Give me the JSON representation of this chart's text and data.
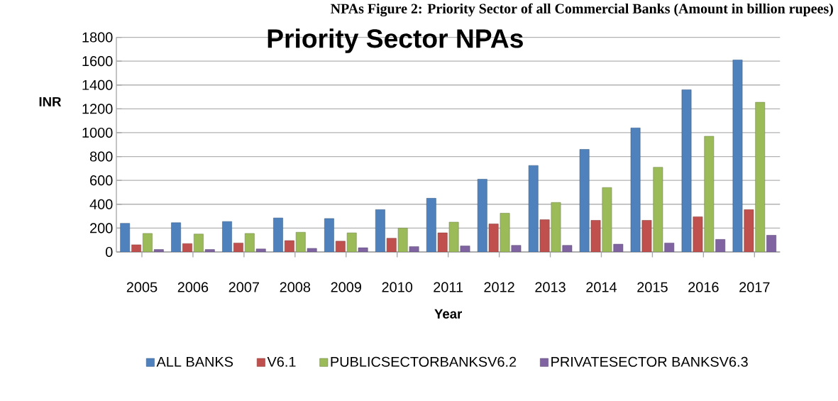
{
  "chart_data": {
    "type": "bar",
    "title": "Priority Sector NPAs",
    "xlabel": "Year",
    "ylabel": "INR",
    "annotations": [
      "NPAs Figure 2: Priority Sector of all Commercial Banks (Amount in billion rupees)"
    ],
    "categories": [
      "2005",
      "2006",
      "2007",
      "2008",
      "2009",
      "2010",
      "2011",
      "2012",
      "2013",
      "2014",
      "2015",
      "2016",
      "2017"
    ],
    "series": [
      {
        "name": "ALL BANKS",
        "color": "#4f81bd",
        "values": [
          240,
          245,
          255,
          285,
          280,
          355,
          450,
          610,
          725,
          860,
          1040,
          1360,
          1610
        ]
      },
      {
        "name": "V6.1",
        "color": "#c0504d",
        "values": [
          60,
          70,
          75,
          95,
          90,
          115,
          160,
          235,
          270,
          265,
          265,
          295,
          355
        ]
      },
      {
        "name": "PUBLICSECTORBANKSV6.2",
        "color": "#9bbb59",
        "values": [
          155,
          150,
          155,
          165,
          160,
          200,
          250,
          325,
          415,
          540,
          710,
          970,
          1255
        ]
      },
      {
        "name": "PRIVATESECTOR BANKSV6.3",
        "color": "#8064a2",
        "values": [
          20,
          20,
          25,
          30,
          35,
          45,
          50,
          55,
          55,
          65,
          75,
          105,
          140
        ]
      }
    ],
    "ylim": [
      0,
      1800
    ],
    "yticks": [
      0,
      200,
      400,
      600,
      800,
      1000,
      1200,
      1400,
      1600,
      1800
    ],
    "grid": "y",
    "legend": "bottom"
  }
}
